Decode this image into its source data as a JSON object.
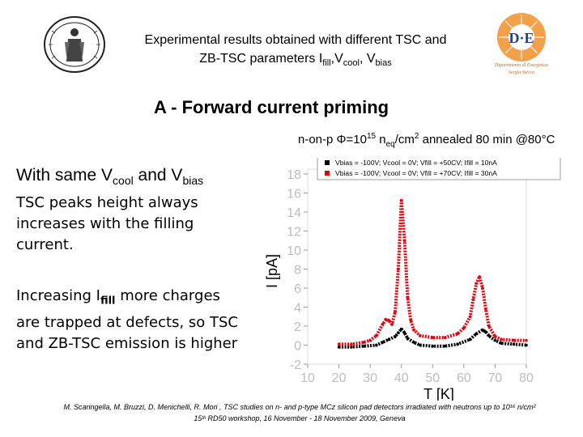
{
  "header": {
    "line1": "Experimental results obtained with different TSC and",
    "line2_prefix": "ZB-TSC parameters  I",
    "fill_sub": "fill",
    "comma1": ",V",
    "cool_sub": "cool",
    "comma2": ", V",
    "bias_sub": "bias"
  },
  "section_title": "A - Forward current priming",
  "condition": {
    "prefix": "n-on-p ",
    "phi": "Φ",
    "eq": "=10",
    "exp": "15",
    "n": " n",
    "eq_sub": "eq",
    "rest": "/cm",
    "sq": "2",
    "anneal": " annealed 80 min @80°C"
  },
  "left_text": {
    "p1_a": "With same V",
    "p1_sub1": "cool",
    "p1_b": " and V",
    "p1_sub2": "bias",
    "p2": "TSC peaks height always increases with the filling current.",
    "p3_a": "Increasing I",
    "p3_sub": "fill",
    "p3_b": " more charges are trapped at defects, so TSC and ZB-TSC emission is higher"
  },
  "right_logo": {
    "mark": "D·E",
    "sub1": "Dipartimento di Energetica",
    "sub2": "Sergio Stecco"
  },
  "footer": {
    "line1": "M. Scaringella, M. Bruzzi, D. Menichelli, R. Mori , TSC studies on n- and p-type MCz silicon pad detectors irradiated with neutrons up to 10¹⁶ n/cm²",
    "line2": "15ᵗʰ RD50 workshop, 16 November - 18 November 2009, Geneva"
  },
  "colors": {
    "series_black": "#000000",
    "series_red": "#e8000b",
    "axis_text": "#bdbdbd"
  },
  "chart_data": {
    "type": "line",
    "xlabel": "T [K]",
    "ylabel": "I [pA]",
    "xlim": [
      10,
      80
    ],
    "ylim": [
      -2,
      18
    ],
    "xticks": [
      10,
      20,
      30,
      40,
      50,
      60,
      70,
      80
    ],
    "yticks": [
      -2,
      0,
      2,
      4,
      6,
      8,
      10,
      12,
      14,
      16,
      18
    ],
    "legend_position": "top-right",
    "series": [
      {
        "name": "Vbias = -100V; Vcool = 0V; Vfill = +50CV; Ifill = 10nA",
        "color": "#000000",
        "x": [
          20,
          24,
          28,
          32,
          34,
          36,
          38,
          39,
          40,
          41,
          42,
          44,
          46,
          50,
          54,
          58,
          62,
          64,
          66,
          67,
          68,
          70,
          72,
          76,
          80
        ],
        "y": [
          -0.2,
          -0.2,
          -0.1,
          0.0,
          0.3,
          0.6,
          0.9,
          1.3,
          1.7,
          1.3,
          0.7,
          0.3,
          0.0,
          -0.1,
          -0.1,
          0.1,
          0.6,
          1.2,
          1.6,
          1.4,
          1.0,
          0.5,
          0.2,
          0.1,
          0.0
        ]
      },
      {
        "name": "Vbias = -100V; Vcool = 0V; Vfill = +70CV; Ifill = 30nA",
        "color": "#e8000b",
        "x": [
          20,
          24,
          28,
          30,
          32,
          34,
          35,
          36,
          37,
          38,
          39,
          40,
          41,
          42,
          43,
          44,
          46,
          50,
          54,
          58,
          60,
          62,
          63,
          64,
          65,
          66,
          67,
          68,
          70,
          72,
          76,
          80
        ],
        "y": [
          0.1,
          0.1,
          0.3,
          0.5,
          1.0,
          2.2,
          2.7,
          2.6,
          2.2,
          3.5,
          8.0,
          15.2,
          11.0,
          5.0,
          2.6,
          1.6,
          1.0,
          0.8,
          0.8,
          1.2,
          1.8,
          3.0,
          4.8,
          6.5,
          7.2,
          6.0,
          3.8,
          2.0,
          0.9,
          0.6,
          0.5,
          0.5
        ]
      }
    ]
  }
}
